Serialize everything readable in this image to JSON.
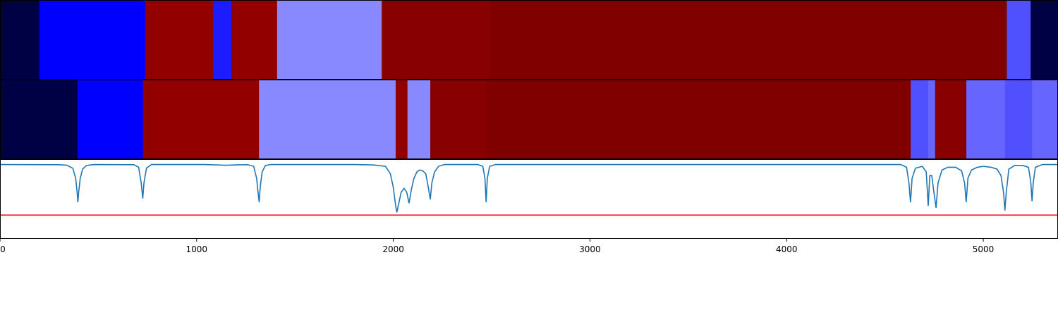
{
  "chart_data": {
    "type": "heatmap",
    "title": "",
    "xlabel": "",
    "ylabel": "",
    "xlim": [
      0,
      5380
    ],
    "grid": false,
    "legend": "none",
    "x_ticks": [
      {
        "value": 0,
        "label": "0"
      },
      {
        "value": 1000,
        "label": "1000"
      },
      {
        "value": 2000,
        "label": "2000"
      },
      {
        "value": 3000,
        "label": "3000"
      },
      {
        "value": 4000,
        "label": "4000"
      },
      {
        "value": 5000,
        "label": "5000"
      }
    ],
    "tracks": [
      {
        "segments": [
          {
            "start": 0,
            "end": 200,
            "color": "#000044"
          },
          {
            "start": 200,
            "end": 738,
            "color": "#0000ff"
          },
          {
            "start": 738,
            "end": 1083,
            "color": "#920000"
          },
          {
            "start": 1083,
            "end": 1177,
            "color": "#1c1cff"
          },
          {
            "start": 1177,
            "end": 1409,
            "color": "#920000"
          },
          {
            "start": 1409,
            "end": 1941,
            "color": "#8888ff"
          },
          {
            "start": 1941,
            "end": 2493,
            "color": "#880000"
          },
          {
            "start": 2493,
            "end": 5120,
            "color": "#800000"
          },
          {
            "start": 5120,
            "end": 5241,
            "color": "#5050ff"
          },
          {
            "start": 5241,
            "end": 5380,
            "color": "#000044"
          }
        ]
      },
      {
        "segments": [
          {
            "start": 0,
            "end": 395,
            "color": "#000044"
          },
          {
            "start": 395,
            "end": 727,
            "color": "#0000ff"
          },
          {
            "start": 727,
            "end": 1317,
            "color": "#920000"
          },
          {
            "start": 1317,
            "end": 2012,
            "color": "#8888ff"
          },
          {
            "start": 2012,
            "end": 2072,
            "color": "#920000"
          },
          {
            "start": 2072,
            "end": 2188,
            "color": "#8888ff"
          },
          {
            "start": 2188,
            "end": 2472,
            "color": "#880000"
          },
          {
            "start": 2472,
            "end": 4631,
            "color": "#800000"
          },
          {
            "start": 4631,
            "end": 4720,
            "color": "#5050ff"
          },
          {
            "start": 4720,
            "end": 4755,
            "color": "#6666ff"
          },
          {
            "start": 4755,
            "end": 4914,
            "color": "#880000"
          },
          {
            "start": 4914,
            "end": 5110,
            "color": "#6666ff"
          },
          {
            "start": 5110,
            "end": 5248,
            "color": "#5050ff"
          },
          {
            "start": 5248,
            "end": 5380,
            "color": "#6666ff"
          }
        ]
      }
    ],
    "signal": {
      "ylim": [
        -0.8,
        0.05
      ],
      "color": "#1f77b4",
      "threshold": {
        "value": -0.55,
        "color": "#ff0000"
      },
      "points": [
        [
          0,
          0.0
        ],
        [
          300,
          -0.002
        ],
        [
          340,
          -0.008
        ],
        [
          370,
          -0.04
        ],
        [
          385,
          -0.15
        ],
        [
          392,
          -0.3
        ],
        [
          396,
          -0.41
        ],
        [
          400,
          -0.3
        ],
        [
          408,
          -0.15
        ],
        [
          420,
          -0.05
        ],
        [
          440,
          -0.01
        ],
        [
          480,
          0.0
        ],
        [
          680,
          -0.002
        ],
        [
          705,
          -0.03
        ],
        [
          718,
          -0.2
        ],
        [
          726,
          -0.37
        ],
        [
          732,
          -0.2
        ],
        [
          745,
          -0.04
        ],
        [
          770,
          0.0
        ],
        [
          1040,
          0.0
        ],
        [
          1110,
          -0.005
        ],
        [
          1150,
          -0.008
        ],
        [
          1200,
          -0.004
        ],
        [
          1260,
          -0.002
        ],
        [
          1290,
          -0.02
        ],
        [
          1305,
          -0.15
        ],
        [
          1313,
          -0.32
        ],
        [
          1318,
          -0.41
        ],
        [
          1323,
          -0.25
        ],
        [
          1333,
          -0.08
        ],
        [
          1350,
          -0.01
        ],
        [
          1380,
          0.0
        ],
        [
          1800,
          0.0
        ],
        [
          1900,
          -0.005
        ],
        [
          1960,
          -0.02
        ],
        [
          1985,
          -0.1
        ],
        [
          2000,
          -0.25
        ],
        [
          2012,
          -0.45
        ],
        [
          2018,
          -0.52
        ],
        [
          2025,
          -0.45
        ],
        [
          2040,
          -0.3
        ],
        [
          2055,
          -0.26
        ],
        [
          2068,
          -0.3
        ],
        [
          2080,
          -0.42
        ],
        [
          2092,
          -0.27
        ],
        [
          2105,
          -0.15
        ],
        [
          2120,
          -0.08
        ],
        [
          2135,
          -0.06
        ],
        [
          2150,
          -0.07
        ],
        [
          2165,
          -0.1
        ],
        [
          2178,
          -0.25
        ],
        [
          2188,
          -0.38
        ],
        [
          2196,
          -0.2
        ],
        [
          2210,
          -0.08
        ],
        [
          2230,
          -0.02
        ],
        [
          2260,
          0.0
        ],
        [
          2430,
          0.0
        ],
        [
          2455,
          -0.02
        ],
        [
          2466,
          -0.15
        ],
        [
          2472,
          -0.41
        ],
        [
          2478,
          -0.15
        ],
        [
          2490,
          -0.02
        ],
        [
          2520,
          0.0
        ],
        [
          4580,
          0.0
        ],
        [
          4610,
          -0.03
        ],
        [
          4622,
          -0.2
        ],
        [
          4630,
          -0.41
        ],
        [
          4638,
          -0.15
        ],
        [
          4655,
          -0.04
        ],
        [
          4690,
          -0.02
        ],
        [
          4710,
          -0.08
        ],
        [
          4720,
          -0.45
        ],
        [
          4728,
          -0.12
        ],
        [
          4738,
          -0.12
        ],
        [
          4752,
          -0.35
        ],
        [
          4760,
          -0.47
        ],
        [
          4770,
          -0.2
        ],
        [
          4790,
          -0.06
        ],
        [
          4820,
          -0.03
        ],
        [
          4860,
          -0.03
        ],
        [
          4890,
          -0.07
        ],
        [
          4905,
          -0.2
        ],
        [
          4913,
          -0.41
        ],
        [
          4922,
          -0.15
        ],
        [
          4940,
          -0.06
        ],
        [
          4970,
          -0.03
        ],
        [
          5000,
          -0.02
        ],
        [
          5040,
          -0.03
        ],
        [
          5070,
          -0.05
        ],
        [
          5090,
          -0.12
        ],
        [
          5103,
          -0.3
        ],
        [
          5110,
          -0.5
        ],
        [
          5117,
          -0.3
        ],
        [
          5130,
          -0.05
        ],
        [
          5160,
          -0.01
        ],
        [
          5200,
          -0.01
        ],
        [
          5230,
          -0.03
        ],
        [
          5242,
          -0.2
        ],
        [
          5248,
          -0.4
        ],
        [
          5254,
          -0.2
        ],
        [
          5265,
          -0.03
        ],
        [
          5300,
          0.0
        ],
        [
          5380,
          0.0
        ]
      ]
    }
  }
}
